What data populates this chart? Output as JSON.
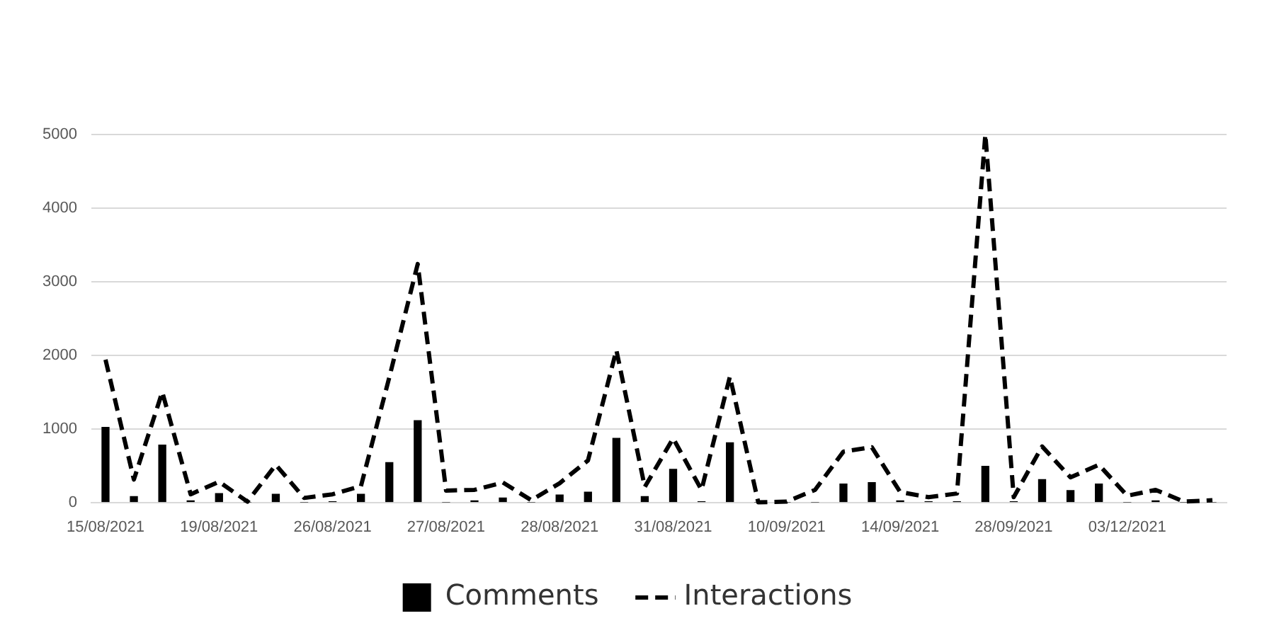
{
  "chart_data": {
    "type": "bar",
    "categories": [
      "15/08/2021",
      null,
      null,
      null,
      "19/08/2021",
      null,
      null,
      null,
      "26/08/2021",
      null,
      null,
      null,
      "27/08/2021",
      null,
      null,
      null,
      "28/08/2021",
      null,
      null,
      null,
      "31/08/2021",
      null,
      null,
      null,
      "10/09/2021",
      null,
      null,
      null,
      "14/09/2021",
      null,
      null,
      null,
      "28/09/2021",
      null,
      null,
      null,
      "03/12/2021",
      null,
      null,
      null
    ],
    "series": [
      {
        "name": "Comments",
        "type": "bar",
        "color": "#000000",
        "values": [
          1020,
          80,
          780,
          20,
          120,
          0,
          110,
          0,
          10,
          110,
          540,
          1110,
          0,
          20,
          60,
          0,
          100,
          140,
          870,
          80,
          450,
          10,
          810,
          0,
          0,
          0,
          250,
          270,
          20,
          10,
          10,
          490,
          10,
          310,
          160,
          250,
          0,
          20,
          0,
          0
        ]
      },
      {
        "name": "Interactions",
        "type": "line",
        "color": "#000000",
        "values": [
          1940,
          310,
          1500,
          110,
          280,
          10,
          510,
          60,
          110,
          220,
          1700,
          3240,
          160,
          170,
          270,
          30,
          260,
          570,
          2070,
          210,
          870,
          170,
          1710,
          0,
          10,
          170,
          690,
          750,
          140,
          70,
          120,
          5000,
          70,
          760,
          340,
          510,
          90,
          170,
          10,
          30
        ]
      }
    ],
    "ylim": [
      0,
      5000
    ],
    "yticks": [
      0,
      1000,
      2000,
      3000,
      4000,
      5000
    ],
    "grid": "y",
    "legend": "bottom",
    "marker": "none",
    "line_style": "dashed"
  }
}
